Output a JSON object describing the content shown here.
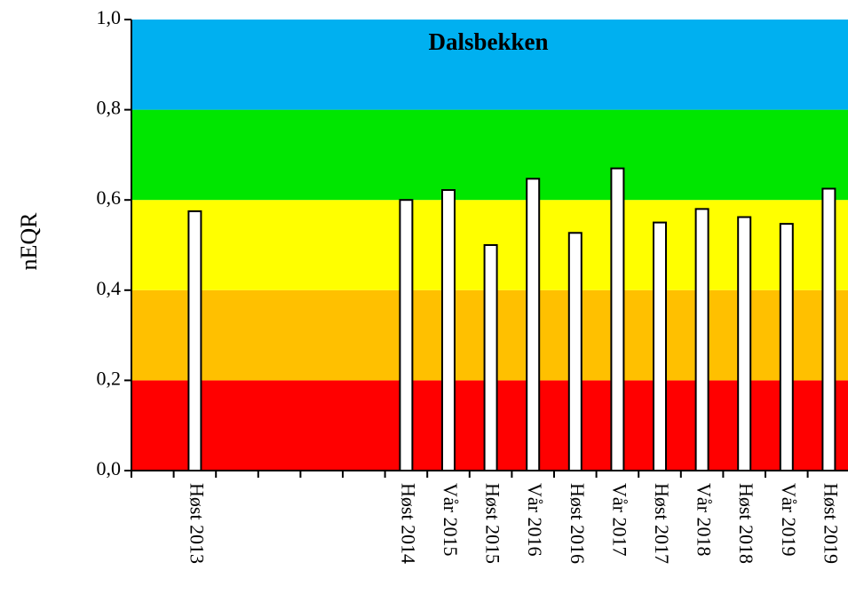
{
  "chart_data": {
    "type": "bar",
    "title": "Dalsbekken",
    "ylabel": "nEQR",
    "categories": [
      null,
      "Høst 2013",
      null,
      null,
      null,
      null,
      "Høst 2014",
      "Vår 2015",
      "Høst 2015",
      "Vår 2016",
      "Høst 2016",
      "Vår 2017",
      "Høst 2017",
      "Vår 2018",
      "Høst 2018",
      "Vår 2019",
      "Høst 2019"
    ],
    "values": [
      null,
      0.575,
      null,
      null,
      null,
      null,
      0.6,
      0.622,
      0.5,
      0.647,
      0.527,
      0.67,
      0.55,
      0.58,
      0.562,
      0.547,
      0.625
    ],
    "color": "#ffffff",
    "bands": [
      {
        "from": 0,
        "to": 0.2,
        "color": "#ff0000"
      },
      {
        "from": 0.2,
        "to": 0.4,
        "color": "#ffc000"
      },
      {
        "from": 0.4,
        "to": 0.6,
        "color": "#ffff00"
      },
      {
        "from": 0.6,
        "to": 0.8,
        "color": "#00e600"
      },
      {
        "from": 0.8,
        "to": 1,
        "color": "#00b0f0"
      }
    ],
    "ylim": [
      0,
      1
    ],
    "yticks": [
      {
        "value": 0,
        "label": "0,0"
      },
      {
        "value": 0.2,
        "label": "0,2"
      },
      {
        "value": 0.4,
        "label": "0,4"
      },
      {
        "value": 0.6,
        "label": "0,6"
      },
      {
        "value": 0.8,
        "label": "0,8"
      },
      {
        "value": 1,
        "label": "1,0"
      }
    ]
  }
}
